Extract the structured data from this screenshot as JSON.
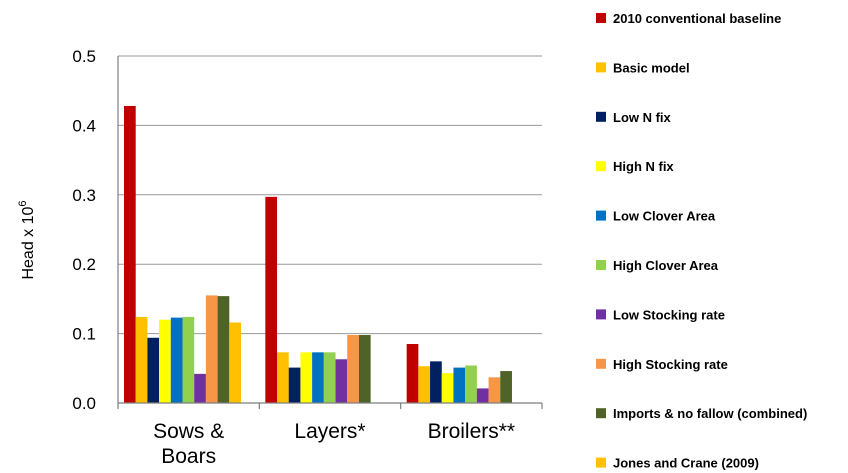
{
  "chart_data": {
    "type": "bar",
    "title": "",
    "xlabel": "",
    "ylabel": "Head x 10",
    "ylabel_superscript": "6",
    "ylim": [
      0,
      0.5
    ],
    "yticks": [
      "0.0",
      "0.1",
      "0.2",
      "0.3",
      "0.4",
      "0.5"
    ],
    "grid": true,
    "legend_position": "right",
    "categories": [
      "Sows & Boars",
      "Layers*",
      "Broilers**"
    ],
    "category_lines": [
      [
        "Sows &",
        "Boars"
      ],
      [
        "Layers*"
      ],
      [
        "Broilers**"
      ]
    ],
    "series": [
      {
        "name": "2010 conventional baseline",
        "color": "#C00000",
        "values": [
          0.428,
          0.297,
          0.085
        ]
      },
      {
        "name": "Basic model",
        "color": "#FFC000",
        "values": [
          0.124,
          0.073,
          0.053
        ]
      },
      {
        "name": "Low N fix",
        "color": "#002060",
        "values": [
          0.094,
          0.051,
          0.06
        ]
      },
      {
        "name": "High N fix",
        "color": "#FFFF00",
        "values": [
          0.12,
          0.073,
          0.043
        ]
      },
      {
        "name": "Low Clover Area",
        "color": "#0070C0",
        "values": [
          0.123,
          0.073,
          0.051
        ]
      },
      {
        "name": "High Clover Area",
        "color": "#92D050",
        "values": [
          0.124,
          0.073,
          0.054
        ]
      },
      {
        "name": "Low Stocking rate",
        "color": "#7030A0",
        "values": [
          0.042,
          0.063,
          0.021
        ]
      },
      {
        "name": "High Stocking rate",
        "color": "#F79646",
        "values": [
          0.155,
          0.098,
          0.037
        ]
      },
      {
        "name": "Imports & no fallow (combined)",
        "color": "#4F6228",
        "values": [
          0.154,
          0.098,
          0.046
        ]
      },
      {
        "name": "Jones and Crane (2009)",
        "color": "#FFC000",
        "values": [
          0.116,
          null,
          null
        ]
      }
    ]
  }
}
